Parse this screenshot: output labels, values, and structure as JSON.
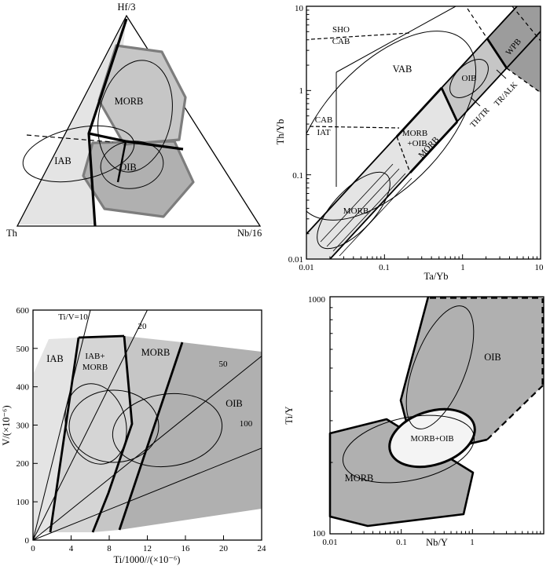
{
  "palette": {
    "light": "#e4e4e4",
    "mid_light": "#d5d5d5",
    "mid": "#c6c6c6",
    "dark": "#b0b0b0",
    "darker": "#9c9c9c",
    "overlap": "#f4f4f4",
    "gray_outline": "#7d7d7d",
    "ink": "#000000",
    "bg": "#ffffff"
  },
  "ternary": {
    "apex_top": "Hf/3",
    "apex_left": "Th",
    "apex_right": "Nb/16",
    "label_morb": "MORB",
    "label_iab": "IAB",
    "label_oib": "OIB"
  },
  "tayb": {
    "ylabel": "Th/Yb",
    "xlabel": "Ta/Yb",
    "xtick_001": "0.01",
    "xtick_01": "0.1",
    "xtick_1": "1",
    "xtick_10": "10",
    "ytick_001": "0.01",
    "ytick_01": "0.1",
    "ytick_1": "1",
    "ytick_10": "10",
    "label_sho": "SHO",
    "label_cab_top": "CAB",
    "label_vab": "VAB",
    "label_oib": "OIB",
    "label_wpb": "WPB",
    "label_cab": "CAB",
    "label_iat": "IAT",
    "label_morb_oib_1": "MORB",
    "label_morb_oib_2": "+OIB",
    "label_morb_band": "MORB",
    "label_morb_bottom": "MORB",
    "label_th_tr": "TH/TR",
    "label_tr_alk": "TR/ALK"
  },
  "tiv": {
    "ylabel": "V/(×10⁻⁶)",
    "xlabel": "Ti/1000//(×10⁻⁶)",
    "yticks": [
      "0",
      "100",
      "200",
      "300",
      "400",
      "500",
      "600"
    ],
    "xticks": [
      "0",
      "4",
      "8",
      "12",
      "16",
      "20",
      "24"
    ],
    "label_tiv10": "Ti/V=10",
    "label_20": "20",
    "label_50": "50",
    "label_100": "100",
    "label_iab": "IAB",
    "label_iabmorb_1": "IAB+",
    "label_iabmorb_2": "MORB",
    "label_morb": "MORB",
    "label_oib": "OIB"
  },
  "nby": {
    "ylabel": "Ti/Y",
    "xlabel": "Nb/Y",
    "ytick_100": "100",
    "ytick_1000": "1000",
    "xtick_001": "0.01",
    "xtick_01": "0.1",
    "xtick_1": "1",
    "label_oib": "OIB",
    "label_morboib": "MORB+OIB",
    "label_morb": "MORB"
  },
  "chart_data": [
    {
      "type": "scatter",
      "subtype": "ternary-discrimination-diagram",
      "title": "Hf/3 - Th - Nb/16 tectonic discrimination diagram",
      "apices": [
        "Hf/3",
        "Th",
        "Nb/16"
      ],
      "fields": [
        "MORB",
        "IAB",
        "OIB"
      ],
      "annotations": [
        "field outlines, sample ellipses and dashed trend line; no numeric data points shown"
      ]
    },
    {
      "type": "scatter",
      "subtype": "discrimination-diagram",
      "title": "Th/Yb vs Ta/Yb discrimination diagram",
      "xlabel": "Ta/Yb",
      "ylabel": "Th/Yb",
      "xscale": "log",
      "yscale": "log",
      "xlim": [
        0.01,
        10
      ],
      "ylim": [
        0.01,
        10
      ],
      "xticks": [
        0.01,
        0.1,
        1,
        10
      ],
      "yticks": [
        0.01,
        0.1,
        1,
        10
      ],
      "grid": false,
      "fields": [
        "SHO",
        "CAB",
        "VAB",
        "OIB",
        "WPB",
        "IAT",
        "MORB+OIB",
        "MORB",
        "TH/TR",
        "TR/ALK"
      ],
      "annotations": [
        "diagonal MORB-OIB array band of unit log-log slope",
        "dashed SHO/CAB and CAB/IAT boundaries",
        "sample ellipses; no numeric data points shown"
      ]
    },
    {
      "type": "scatter",
      "subtype": "discrimination-diagram",
      "title": "V vs Ti/1000 discrimination diagram",
      "xlabel": "Ti/1000//(×10⁻⁶)",
      "ylabel": "V/(×10⁻⁶)",
      "xlim": [
        0,
        24
      ],
      "ylim": [
        0,
        600
      ],
      "xticks": [
        0,
        4,
        8,
        12,
        16,
        20,
        24
      ],
      "yticks": [
        0,
        100,
        200,
        300,
        400,
        500,
        600
      ],
      "grid": false,
      "reference_lines": [
        {
          "label": "Ti/V=10",
          "ratio": 10
        },
        {
          "label": "20",
          "ratio": 20
        },
        {
          "label": "50",
          "ratio": 50
        },
        {
          "label": "100",
          "ratio": 100
        }
      ],
      "fields": [
        "IAB",
        "IAB+MORB",
        "MORB",
        "OIB"
      ],
      "annotations": [
        "Ti/V ratio lines radiate from origin",
        "sample ellipses; no numeric data points shown"
      ]
    },
    {
      "type": "scatter",
      "subtype": "discrimination-diagram",
      "title": "Ti/Y vs Nb/Y discrimination diagram",
      "xlabel": "Nb/Y",
      "ylabel": "Ti/Y",
      "xscale": "log",
      "yscale": "log",
      "xlim": [
        0.01,
        10
      ],
      "ylim": [
        100,
        1000
      ],
      "xticks": [
        0.01,
        0.1,
        1
      ],
      "yticks": [
        100,
        1000
      ],
      "grid": false,
      "fields": [
        "OIB",
        "MORB+OIB",
        "MORB"
      ],
      "annotations": [
        "OIB field partly dashed boundary",
        "bold-outlined MORB+OIB overlap ellipse; no numeric data points shown"
      ]
    }
  ]
}
